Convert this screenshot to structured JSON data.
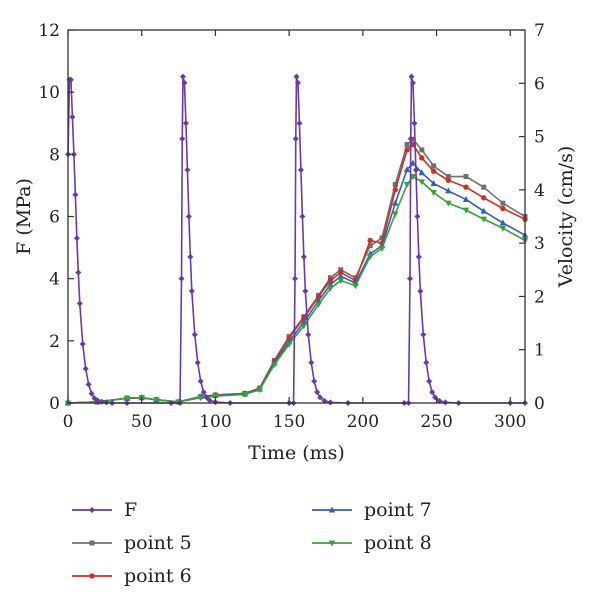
{
  "chart_data": {
    "type": "line",
    "title": "",
    "xlabel": "Time (ms)",
    "ylabel_left": "F (MPa)",
    "ylabel_right": "Velocity (cm/s)",
    "xlim": [
      0,
      310
    ],
    "ylim_left": [
      0,
      12
    ],
    "ylim_right": [
      0,
      7
    ],
    "x_ticks": [
      0,
      50,
      100,
      150,
      200,
      250,
      300
    ],
    "y_left_ticks": [
      0,
      2,
      4,
      6,
      8,
      10,
      12
    ],
    "y_right_ticks": [
      0,
      1,
      2,
      3,
      4,
      5,
      6,
      7
    ],
    "legend_position": "below",
    "series": [
      {
        "name": "F",
        "axis": "left",
        "color": "#6a3aa8",
        "marker": "diamond",
        "x": [
          0,
          1,
          2,
          3,
          4,
          5,
          6,
          7,
          8,
          10,
          12,
          14,
          16,
          18,
          20,
          23,
          26,
          30,
          40,
          70,
          76,
          77,
          77.5,
          78,
          79,
          80,
          81,
          82,
          83,
          84,
          86,
          88,
          90,
          92,
          94,
          96,
          100,
          110,
          150,
          153,
          154,
          154.5,
          155,
          156,
          157,
          158,
          159,
          160,
          161,
          163,
          165,
          167,
          169,
          171,
          174,
          178,
          190,
          228,
          231,
          232,
          232.5,
          233,
          234,
          235,
          236,
          237,
          238,
          239,
          241,
          243,
          245,
          247,
          249,
          252,
          256,
          265,
          300,
          310
        ],
        "values": [
          8.0,
          10.4,
          10.4,
          9.2,
          8.0,
          6.7,
          5.3,
          4.2,
          3.2,
          1.9,
          1.1,
          0.6,
          0.3,
          0.15,
          0.08,
          0.04,
          0.02,
          0.0,
          0.0,
          0.0,
          0.0,
          4.0,
          8.5,
          10.5,
          10.3,
          9.0,
          7.5,
          6.0,
          4.7,
          3.6,
          2.2,
          1.3,
          0.7,
          0.35,
          0.18,
          0.09,
          0.03,
          0.0,
          0.0,
          0.0,
          4.0,
          8.5,
          10.5,
          10.3,
          9.0,
          7.5,
          6.0,
          4.7,
          3.6,
          2.2,
          1.3,
          0.7,
          0.35,
          0.18,
          0.07,
          0.02,
          0.0,
          0.0,
          0.0,
          4.0,
          8.5,
          10.5,
          10.3,
          9.0,
          7.5,
          6.0,
          4.7,
          3.6,
          2.2,
          1.3,
          0.7,
          0.35,
          0.18,
          0.07,
          0.02,
          0.0,
          0.0,
          0.0
        ]
      },
      {
        "name": "point 5",
        "axis": "right",
        "color": "#707070",
        "marker": "square",
        "x": [
          0,
          20,
          40,
          50,
          60,
          75,
          90,
          100,
          120,
          130,
          140,
          150,
          160,
          170,
          178,
          185,
          195,
          205,
          213,
          222,
          230,
          234,
          240,
          248,
          258,
          270,
          282,
          295,
          310
        ],
        "values": [
          0.0,
          0.02,
          0.09,
          0.1,
          0.06,
          0.02,
          0.12,
          0.15,
          0.18,
          0.28,
          0.8,
          1.25,
          1.62,
          2.02,
          2.35,
          2.5,
          2.35,
          2.95,
          3.1,
          4.1,
          4.85,
          4.95,
          4.75,
          4.45,
          4.25,
          4.25,
          4.05,
          3.75,
          3.5
        ]
      },
      {
        "name": "point 6",
        "axis": "right",
        "color": "#d42d22",
        "marker": "circle",
        "x": [
          0,
          20,
          40,
          50,
          60,
          75,
          90,
          100,
          120,
          130,
          140,
          150,
          160,
          170,
          178,
          185,
          195,
          205,
          213,
          222,
          230,
          234,
          240,
          248,
          258,
          270,
          282,
          295,
          310
        ],
        "values": [
          0.0,
          0.02,
          0.09,
          0.1,
          0.06,
          0.02,
          0.12,
          0.15,
          0.18,
          0.27,
          0.78,
          1.22,
          1.6,
          2.0,
          2.3,
          2.45,
          2.3,
          3.05,
          3.0,
          4.0,
          4.75,
          4.85,
          4.6,
          4.35,
          4.18,
          4.05,
          3.85,
          3.65,
          3.45
        ]
      },
      {
        "name": "point 7",
        "axis": "right",
        "color": "#2f5fc4",
        "marker": "triangle-up",
        "x": [
          0,
          20,
          40,
          50,
          60,
          75,
          90,
          100,
          120,
          130,
          140,
          150,
          160,
          170,
          178,
          185,
          195,
          205,
          213,
          222,
          230,
          234,
          240,
          248,
          258,
          270,
          282,
          295,
          310
        ],
        "values": [
          0.0,
          0.02,
          0.09,
          0.1,
          0.06,
          0.02,
          0.12,
          0.14,
          0.17,
          0.26,
          0.75,
          1.15,
          1.52,
          1.92,
          2.22,
          2.38,
          2.25,
          2.8,
          2.95,
          3.75,
          4.38,
          4.5,
          4.32,
          4.12,
          3.98,
          3.82,
          3.6,
          3.38,
          3.15
        ]
      },
      {
        "name": "point 8",
        "axis": "right",
        "color": "#3aa03a",
        "marker": "triangle-down",
        "x": [
          0,
          20,
          40,
          50,
          60,
          75,
          90,
          100,
          120,
          130,
          140,
          150,
          160,
          170,
          178,
          185,
          195,
          205,
          213,
          222,
          230,
          234,
          240,
          248,
          258,
          270,
          282,
          295,
          310
        ],
        "values": [
          0.0,
          0.02,
          0.09,
          0.1,
          0.06,
          0.02,
          0.1,
          0.13,
          0.16,
          0.25,
          0.72,
          1.1,
          1.45,
          1.85,
          2.15,
          2.3,
          2.2,
          2.75,
          2.9,
          3.55,
          4.1,
          4.25,
          4.15,
          3.95,
          3.75,
          3.62,
          3.45,
          3.28,
          3.05
        ]
      }
    ]
  }
}
